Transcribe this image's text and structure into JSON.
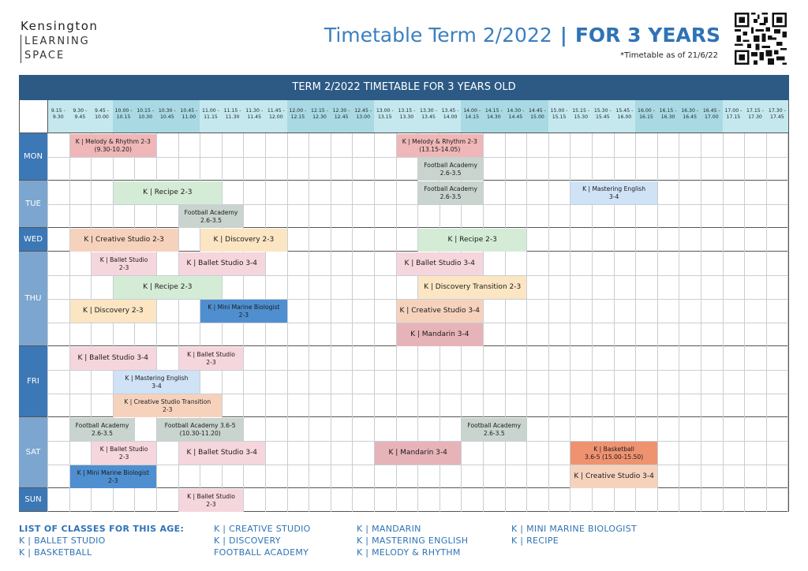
{
  "brand": {
    "line1": "Kensington",
    "line2": "LEARNING",
    "line3": "SPACE"
  },
  "title": {
    "main": "Timetable Term 2/2022",
    "separator": "|",
    "highlight": "FOR 3 YEARS",
    "as_of": "*Timetable as of 21/6/22"
  },
  "table": {
    "banner": "TERM 2/2022 TIMETABLE FOR 3 YEARS OLD",
    "slots": [
      [
        "9.15 -",
        "9.30"
      ],
      [
        "9.30 -",
        "9.45"
      ],
      [
        "9.45 -",
        "10.00"
      ],
      [
        "10.00 -",
        "10.15"
      ],
      [
        "10.15 -",
        "10.30"
      ],
      [
        "10.30 -",
        "10.45"
      ],
      [
        "10.45 -",
        "11.00"
      ],
      [
        "11.00 -",
        "11.15"
      ],
      [
        "11.15 -",
        "11.30"
      ],
      [
        "11.30 -",
        "11.45"
      ],
      [
        "11.45 -",
        "12.00"
      ],
      [
        "12.00 -",
        "12.15"
      ],
      [
        "12.15 -",
        "12.30"
      ],
      [
        "12.30 -",
        "12.45"
      ],
      [
        "12.45 -",
        "13.00"
      ],
      [
        "13.00 -",
        "13.15"
      ],
      [
        "13.15 -",
        "13.30"
      ],
      [
        "13.30 -",
        "13.45"
      ],
      [
        "13.45 -",
        "14.00"
      ],
      [
        "14.00 -",
        "14.15"
      ],
      [
        "14.15 -",
        "14.30"
      ],
      [
        "14.30 -",
        "14.45"
      ],
      [
        "14.45 -",
        "15.00"
      ],
      [
        "15.00 -",
        "15.15"
      ],
      [
        "15.15 -",
        "15.30"
      ],
      [
        "15.30 -",
        "15.45"
      ],
      [
        "15.45 -",
        "16.00"
      ],
      [
        "16.00 -",
        "16.15"
      ],
      [
        "16.15 -",
        "16.30"
      ],
      [
        "16.30 -",
        "16.45"
      ],
      [
        "16.45 -",
        "17.00"
      ],
      [
        "17.00 -",
        "17.15"
      ],
      [
        "17.15 -",
        "17.30"
      ],
      [
        "17.30 -",
        "17.45"
      ]
    ],
    "days": [
      {
        "label": "MON",
        "rows": 2
      },
      {
        "label": "TUE",
        "rows": 2
      },
      {
        "label": "WED",
        "rows": 1
      },
      {
        "label": "THU",
        "rows": 4
      },
      {
        "label": "FRI",
        "rows": 3
      },
      {
        "label": "SAT",
        "rows": 3
      },
      {
        "label": "SUN",
        "rows": 1
      }
    ],
    "events": [
      {
        "day": "MON",
        "row": 0,
        "start": 1,
        "end": 5,
        "type": "melody",
        "lines": [
          "K | Melody & Rhythm 2-3",
          "(9.30-10.20)"
        ]
      },
      {
        "day": "MON",
        "row": 0,
        "start": 16,
        "end": 20,
        "type": "melody",
        "lines": [
          "K | Melody & Rhythm 2-3",
          "(13.15-14.05)"
        ]
      },
      {
        "day": "MON",
        "row": 1,
        "start": 17,
        "end": 20,
        "type": "football",
        "lines": [
          "Football Academy",
          "2.6-3.5"
        ]
      },
      {
        "day": "TUE",
        "row": 0,
        "start": 3,
        "end": 8,
        "type": "recipe",
        "lines": [
          "K | Recipe 2-3"
        ]
      },
      {
        "day": "TUE",
        "row": 0,
        "start": 17,
        "end": 20,
        "type": "football",
        "lines": [
          "Football Academy",
          "2.6-3.5"
        ]
      },
      {
        "day": "TUE",
        "row": 0,
        "start": 24,
        "end": 28,
        "type": "english",
        "lines": [
          "K | Mastering English",
          "3-4"
        ]
      },
      {
        "day": "TUE",
        "row": 1,
        "start": 6,
        "end": 9,
        "type": "football",
        "lines": [
          "Football Academy",
          "2.6-3.5"
        ]
      },
      {
        "day": "WED",
        "row": 0,
        "start": 1,
        "end": 6,
        "type": "creative",
        "lines": [
          "K | Creative Studio 2-3"
        ]
      },
      {
        "day": "WED",
        "row": 0,
        "start": 7,
        "end": 11,
        "type": "discovery",
        "lines": [
          "K | Discovery 2-3"
        ]
      },
      {
        "day": "WED",
        "row": 0,
        "start": 17,
        "end": 22,
        "type": "recipe",
        "lines": [
          "K | Recipe 2-3"
        ]
      },
      {
        "day": "THU",
        "row": 0,
        "start": 2,
        "end": 5,
        "type": "ballet",
        "lines": [
          "K | Ballet Studio",
          "2-3"
        ]
      },
      {
        "day": "THU",
        "row": 0,
        "start": 6,
        "end": 10,
        "type": "ballet",
        "lines": [
          "K | Ballet Studio 3-4"
        ]
      },
      {
        "day": "THU",
        "row": 0,
        "start": 16,
        "end": 20,
        "type": "ballet",
        "lines": [
          "K | Ballet Studio 3-4"
        ]
      },
      {
        "day": "THU",
        "row": 1,
        "start": 3,
        "end": 8,
        "type": "recipe",
        "lines": [
          "K | Recipe 2-3"
        ]
      },
      {
        "day": "THU",
        "row": 1,
        "start": 17,
        "end": 22,
        "type": "discovery",
        "lines": [
          "K | Discovery Transition 2-3"
        ]
      },
      {
        "day": "THU",
        "row": 2,
        "start": 1,
        "end": 5,
        "type": "discovery",
        "lines": [
          "K | Discovery 2-3"
        ]
      },
      {
        "day": "THU",
        "row": 2,
        "start": 7,
        "end": 11,
        "type": "marine",
        "lines": [
          "K | Mini Marine Biologist",
          "2-3"
        ]
      },
      {
        "day": "THU",
        "row": 2,
        "start": 16,
        "end": 20,
        "type": "creative",
        "lines": [
          "K | Creative Studio 3-4"
        ]
      },
      {
        "day": "THU",
        "row": 3,
        "start": 16,
        "end": 20,
        "type": "mandarin",
        "lines": [
          "K | Mandarin  3-4"
        ]
      },
      {
        "day": "FRI",
        "row": 0,
        "start": 1,
        "end": 5,
        "type": "ballet",
        "lines": [
          "K | Ballet Studio 3-4"
        ]
      },
      {
        "day": "FRI",
        "row": 0,
        "start": 6,
        "end": 9,
        "type": "ballet",
        "lines": [
          "K | Ballet Studio",
          "2-3"
        ]
      },
      {
        "day": "FRI",
        "row": 1,
        "start": 3,
        "end": 7,
        "type": "english",
        "lines": [
          "K | Mastering English",
          "3-4"
        ]
      },
      {
        "day": "FRI",
        "row": 2,
        "start": 3,
        "end": 8,
        "type": "creative",
        "lines": [
          "K | Creative Studio Transition",
          "2-3"
        ]
      },
      {
        "day": "SAT",
        "row": 0,
        "start": 1,
        "end": 4,
        "type": "football",
        "lines": [
          "Football Academy",
          "2.6-3.5"
        ]
      },
      {
        "day": "SAT",
        "row": 0,
        "start": 5,
        "end": 9,
        "type": "football",
        "lines": [
          "Football Academy 3.6-5",
          "(10.30-11.20)"
        ]
      },
      {
        "day": "SAT",
        "row": 0,
        "start": 19,
        "end": 22,
        "type": "football",
        "lines": [
          "Football Academy",
          "2.6-3.5"
        ]
      },
      {
        "day": "SAT",
        "row": 1,
        "start": 2,
        "end": 5,
        "type": "ballet",
        "lines": [
          "K | Ballet Studio",
          "2-3"
        ]
      },
      {
        "day": "SAT",
        "row": 1,
        "start": 6,
        "end": 10,
        "type": "ballet",
        "lines": [
          "K | Ballet Studio 3-4"
        ]
      },
      {
        "day": "SAT",
        "row": 1,
        "start": 15,
        "end": 19,
        "type": "mandarin",
        "lines": [
          "K | Mandarin  3-4"
        ]
      },
      {
        "day": "SAT",
        "row": 1,
        "start": 24,
        "end": 28,
        "type": "basketball",
        "lines": [
          "K | Basketball",
          "3.6-5 (15.00-15.50)"
        ]
      },
      {
        "day": "SAT",
        "row": 2,
        "start": 1,
        "end": 5,
        "type": "marine",
        "lines": [
          "K | Mini Marine Biologist",
          "2-3"
        ]
      },
      {
        "day": "SAT",
        "row": 2,
        "start": 24,
        "end": 28,
        "type": "creative",
        "lines": [
          "K | Creative Studio 3-4"
        ]
      },
      {
        "day": "SUN",
        "row": 0,
        "start": 6,
        "end": 9,
        "type": "ballet",
        "lines": [
          "K | Ballet Studio",
          "2-3"
        ]
      }
    ]
  },
  "colors": {
    "banner": "#2c5a85",
    "header_light": "#a9d9e3",
    "header_dark": "#c5e8ee",
    "day_light": "#7ca6cf",
    "day_dark": "#3d78b6",
    "melody": "#efb7b7",
    "football": "#c9d4cf",
    "recipe": "#d4ecd6",
    "english": "#cfe2f6",
    "creative": "#f6d2bd",
    "discovery": "#fbe5c3",
    "ballet": "#f6d6dd",
    "marine": "#4f8fd0",
    "mandarin": "#e6b3b9",
    "basketball": "#ef9270"
  },
  "legend": {
    "heading": "LIST OF CLASSES FOR THIS AGE:",
    "columns": [
      [
        "K | BALLET STUDIO",
        "K | BASKETBALL"
      ],
      [
        "K | CREATIVE STUDIO",
        "K | DISCOVERY",
        "FOOTBALL ACADEMY"
      ],
      [
        "K | MANDARIN",
        "K | MASTERING ENGLISH",
        "K | MELODY & RHYTHM"
      ],
      [
        "K | MINI MARINE BIOLOGIST",
        "K | RECIPE"
      ]
    ]
  }
}
